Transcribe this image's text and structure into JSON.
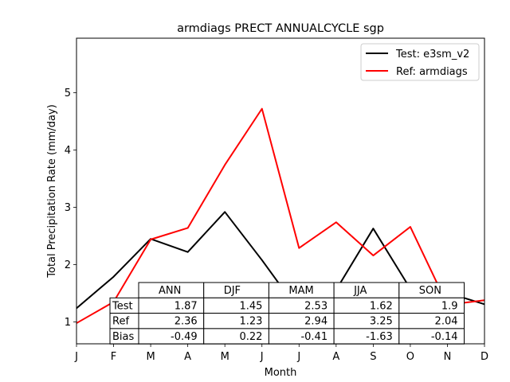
{
  "chart_data": {
    "type": "line",
    "title": "armdiags PRECT ANNUALCYCLE sgp",
    "xlabel": "Month",
    "ylabel": "Total Precipitation Rate (mm/day)",
    "x_tick_labels": [
      "J",
      "F",
      "M",
      "A",
      "M",
      "J",
      "J",
      "A",
      "S",
      "O",
      "N",
      "D"
    ],
    "yticks": [
      1,
      2,
      3,
      4,
      5
    ],
    "ylim": [
      0.62,
      5.95
    ],
    "grid": false,
    "legend_position": "top-right",
    "series": [
      {
        "name": "Test: e3sm_v2",
        "color": "#000000",
        "values": [
          1.24,
          1.79,
          2.45,
          2.22,
          2.92,
          2.08,
          1.19,
          1.56,
          2.63,
          1.58,
          1.51,
          1.31
        ]
      },
      {
        "name": "Ref: armdiags",
        "color": "#ff0000",
        "values": [
          0.98,
          1.35,
          2.44,
          2.64,
          3.74,
          4.72,
          2.29,
          2.74,
          2.16,
          2.66,
          1.3,
          1.38
        ]
      }
    ],
    "table": {
      "columns": [
        "ANN",
        "DJF",
        "MAM",
        "JJA",
        "SON"
      ],
      "rows": [
        {
          "label": "Test",
          "values": [
            "1.87",
            "1.45",
            "2.53",
            "1.62",
            "1.9"
          ]
        },
        {
          "label": "Ref",
          "values": [
            "2.36",
            "1.23",
            "2.94",
            "3.25",
            "2.04"
          ]
        },
        {
          "label": "Bias",
          "values": [
            "-0.49",
            "0.22",
            "-0.41",
            "-1.63",
            "-0.14"
          ]
        }
      ]
    }
  }
}
